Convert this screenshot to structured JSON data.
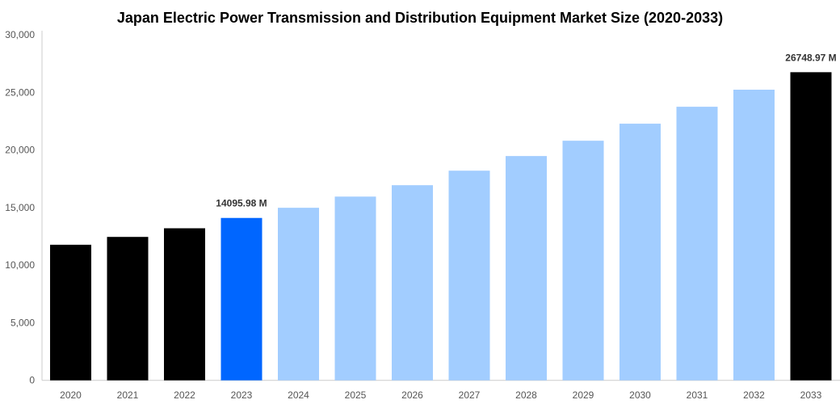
{
  "chart_data": {
    "type": "bar",
    "title": "Japan Electric Power Transmission and Distribution Equipment Market Size (2020-2033)",
    "xlabel": "",
    "ylabel": "",
    "categories": [
      "2020",
      "2021",
      "2022",
      "2023",
      "2024",
      "2025",
      "2026",
      "2027",
      "2028",
      "2029",
      "2030",
      "2031",
      "2032",
      "2033"
    ],
    "values": [
      11770,
      12450,
      13200,
      14095.98,
      14980,
      15950,
      16940,
      18200,
      19470,
      20800,
      22280,
      23750,
      25230,
      26748.97
    ],
    "bar_colors": [
      "#000000",
      "#000000",
      "#000000",
      "#0066ff",
      "#a2cdff",
      "#a2cdff",
      "#a2cdff",
      "#a2cdff",
      "#a2cdff",
      "#a2cdff",
      "#a2cdff",
      "#a2cdff",
      "#a2cdff",
      "#000000"
    ],
    "data_labels": {
      "2023": "14095.98 M",
      "2033": "26748.97 M"
    },
    "ylim": [
      0,
      30000
    ],
    "yticks": [
      0,
      5000,
      10000,
      15000,
      20000,
      25000,
      30000
    ],
    "ytick_labels": [
      "0",
      "5,000",
      "10,000",
      "15,000",
      "20,000",
      "25,000",
      "30,000"
    ],
    "grid": false,
    "legend": "none"
  }
}
